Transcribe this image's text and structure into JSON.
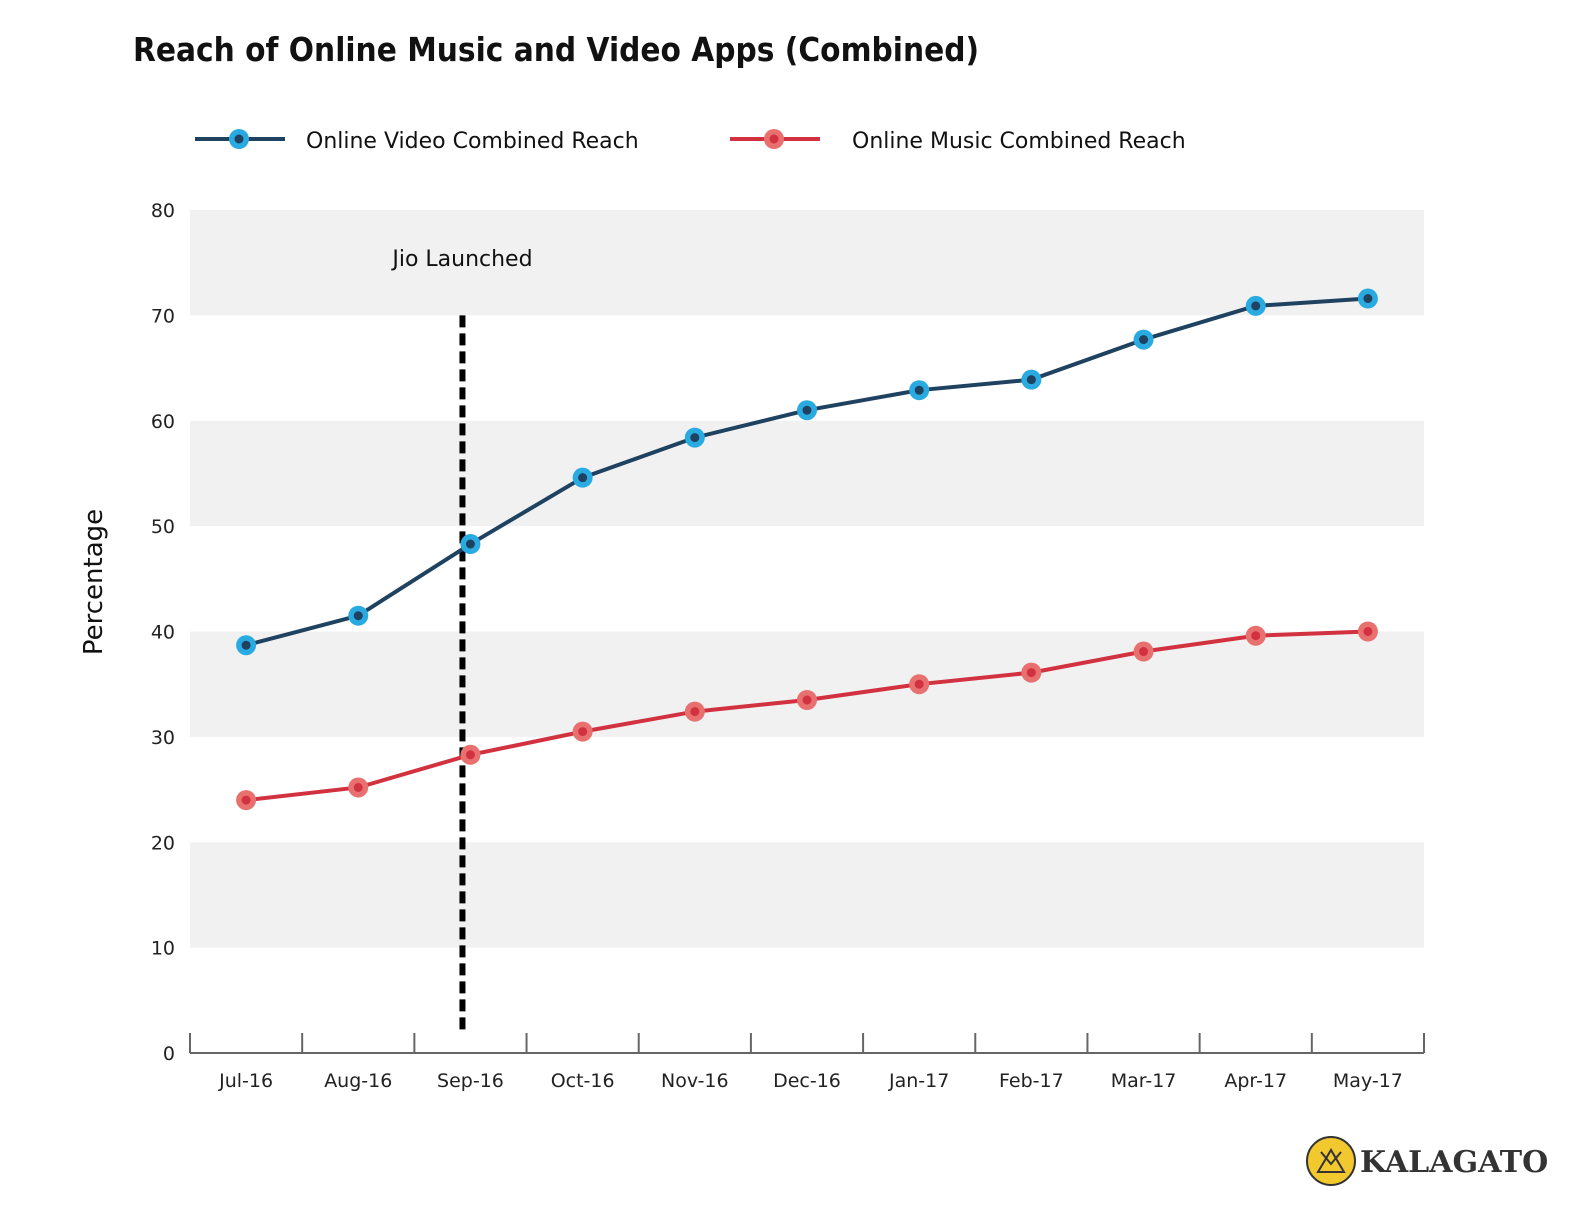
{
  "chart_data": {
    "type": "line",
    "title": "Reach of Online Music and Video Apps (Combined)",
    "xlabel": "",
    "ylabel": "Percentage",
    "ylim": [
      0,
      80
    ],
    "yticks": [
      0,
      10,
      20,
      30,
      40,
      50,
      60,
      70,
      80
    ],
    "categories": [
      "Jul-16",
      "Aug-16",
      "Sep-16",
      "Oct-16",
      "Nov-16",
      "Dec-16",
      "Jan-17",
      "Feb-17",
      "Mar-17",
      "Apr-17",
      "May-17"
    ],
    "series": [
      {
        "name": "Online Video Combined Reach",
        "line_color": "#1f4260",
        "marker_color": "#29abe2",
        "values": [
          38.7,
          41.5,
          48.3,
          54.6,
          58.4,
          61.0,
          62.9,
          63.9,
          67.7,
          70.9,
          71.6
        ]
      },
      {
        "name": "Online Music Combined Reach",
        "line_color": "#d2323f",
        "marker_color": "#e8706f",
        "values": [
          24.0,
          25.2,
          28.3,
          30.5,
          32.4,
          33.5,
          35.0,
          36.1,
          38.1,
          39.6,
          40.0
        ]
      }
    ],
    "annotations": [
      {
        "text": "Jio Launched",
        "x_category": "Sep-16",
        "style": "dotted vertical line"
      }
    ],
    "legend_position": "top",
    "grid": "alternating horizontal bands"
  },
  "branding": {
    "logo_text": "KALAGATO",
    "logo_color": "#f2c82f"
  }
}
